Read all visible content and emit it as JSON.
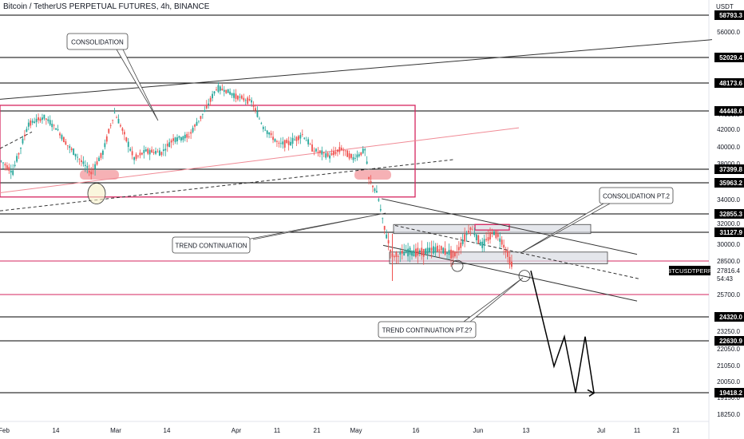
{
  "header": {
    "title": "Bitcoin / TetherUS PERPETUAL FUTURES, 4h, BINANCE"
  },
  "colors": {
    "up": "#26a69a",
    "down": "#ef5350",
    "hline": "#000000",
    "magenta": "#d6255f",
    "pink_fill": "#f4a3a8",
    "axis_text": "#131722",
    "gray_box": "#d9dce2"
  },
  "chart_data": {
    "type": "candlestick",
    "title": "Bitcoin / TetherUS PERPETUAL FUTURES, 4h, BINANCE",
    "y_axis": {
      "unit_label": "USDT",
      "ticks": [
        "56000.0",
        "44000.0",
        "42000.0",
        "40000.0",
        "38000.0",
        "36000.0",
        "34000.0",
        "32000.0",
        "30000.0",
        "28500.0",
        "25700.0",
        "23250.0",
        "22050.0",
        "21050.0",
        "20050.0",
        "19150.0",
        "18250.0"
      ],
      "range": [
        17500,
        59500
      ]
    },
    "x_axis": {
      "ticks": [
        "Feb",
        "14",
        "Mar",
        "14",
        "Apr",
        "11",
        "21",
        "May",
        "16",
        "Jun",
        "13",
        "Jul",
        "11",
        "21"
      ]
    },
    "price_levels": [
      {
        "value": 58793.3,
        "label": "58793.3",
        "color": "black"
      },
      {
        "value": 52029.4,
        "label": "52029.4",
        "color": "black"
      },
      {
        "value": 48173.6,
        "label": "48173.6",
        "color": "black"
      },
      {
        "value": 44448.6,
        "label": "44448.6",
        "color": "black"
      },
      {
        "value": 37399.8,
        "label": "37399.8",
        "color": "black"
      },
      {
        "value": 35963.2,
        "label": "35963.2",
        "color": "black"
      },
      {
        "value": 32855.3,
        "label": "32855.3",
        "color": "black"
      },
      {
        "value": 31127.9,
        "label": "31127.9",
        "color": "black"
      },
      {
        "value": 28500.0,
        "label": "",
        "color": "magenta"
      },
      {
        "value": 25700.0,
        "label": "",
        "color": "magenta"
      },
      {
        "value": 24320.0,
        "label": "24320.0",
        "color": "black"
      },
      {
        "value": 22630.9,
        "label": "22630.9",
        "color": "black"
      },
      {
        "value": 19418.2,
        "label": "19418.2",
        "color": "black"
      }
    ],
    "current_price": {
      "symbol": "BTCUSDTPERP",
      "price": "27816.4",
      "countdown": "54:43",
      "value": 27816.4
    },
    "annotations": [
      "CONSOLIDATION",
      "TREND CONTINUATION",
      "CONSOLIDATION PT.2",
      "TREND CONTINUATION PT.2?"
    ],
    "close_path": [
      {
        "date": "Feb 1",
        "close": 38300
      },
      {
        "date": "Feb 4",
        "close": 37100
      },
      {
        "date": "Feb 8",
        "close": 42700
      },
      {
        "date": "Feb 12",
        "close": 43600
      },
      {
        "date": "Feb 15",
        "close": 42200
      },
      {
        "date": "Feb 18",
        "close": 40200
      },
      {
        "date": "Feb 22",
        "close": 38000
      },
      {
        "date": "Feb 24",
        "close": 37000
      },
      {
        "date": "Feb 27",
        "close": 39300
      },
      {
        "date": "Mar 2",
        "close": 44200
      },
      {
        "date": "Mar 7",
        "close": 38600
      },
      {
        "date": "Mar 10",
        "close": 39500
      },
      {
        "date": "Mar 14",
        "close": 39300
      },
      {
        "date": "Mar 17",
        "close": 40900
      },
      {
        "date": "Mar 21",
        "close": 41200
      },
      {
        "date": "Mar 25",
        "close": 44400
      },
      {
        "date": "Mar 28",
        "close": 47400
      },
      {
        "date": "Mar 30",
        "close": 47300
      },
      {
        "date": "Apr 2",
        "close": 46400
      },
      {
        "date": "Apr 6",
        "close": 45700
      },
      {
        "date": "Apr 9",
        "close": 42300
      },
      {
        "date": "Apr 13",
        "close": 40300
      },
      {
        "date": "Apr 16",
        "close": 40500
      },
      {
        "date": "Apr 19",
        "close": 41400
      },
      {
        "date": "Apr 22",
        "close": 39600
      },
      {
        "date": "Apr 26",
        "close": 38900
      },
      {
        "date": "Apr 29",
        "close": 39800
      },
      {
        "date": "May 2",
        "close": 38600
      },
      {
        "date": "May 5",
        "close": 39600
      },
      {
        "date": "May 6",
        "close": 36400
      },
      {
        "date": "May 8",
        "close": 34800
      },
      {
        "date": "May 10",
        "close": 31500
      },
      {
        "date": "May 12",
        "close": 28900
      },
      {
        "date": "May 16",
        "close": 29300
      },
      {
        "date": "May 20",
        "close": 29300
      },
      {
        "date": "May 24",
        "close": 29600
      },
      {
        "date": "May 28",
        "close": 29000
      },
      {
        "date": "Jun 1",
        "close": 31600
      },
      {
        "date": "Jun 4",
        "close": 29900
      },
      {
        "date": "Jun 7",
        "close": 31200
      },
      {
        "date": "Jun 9",
        "close": 30300
      },
      {
        "date": "Jun 12",
        "close": 27800
      }
    ],
    "projection_path": [
      27800,
      21000,
      22900,
      19400,
      22900,
      19400
    ]
  }
}
